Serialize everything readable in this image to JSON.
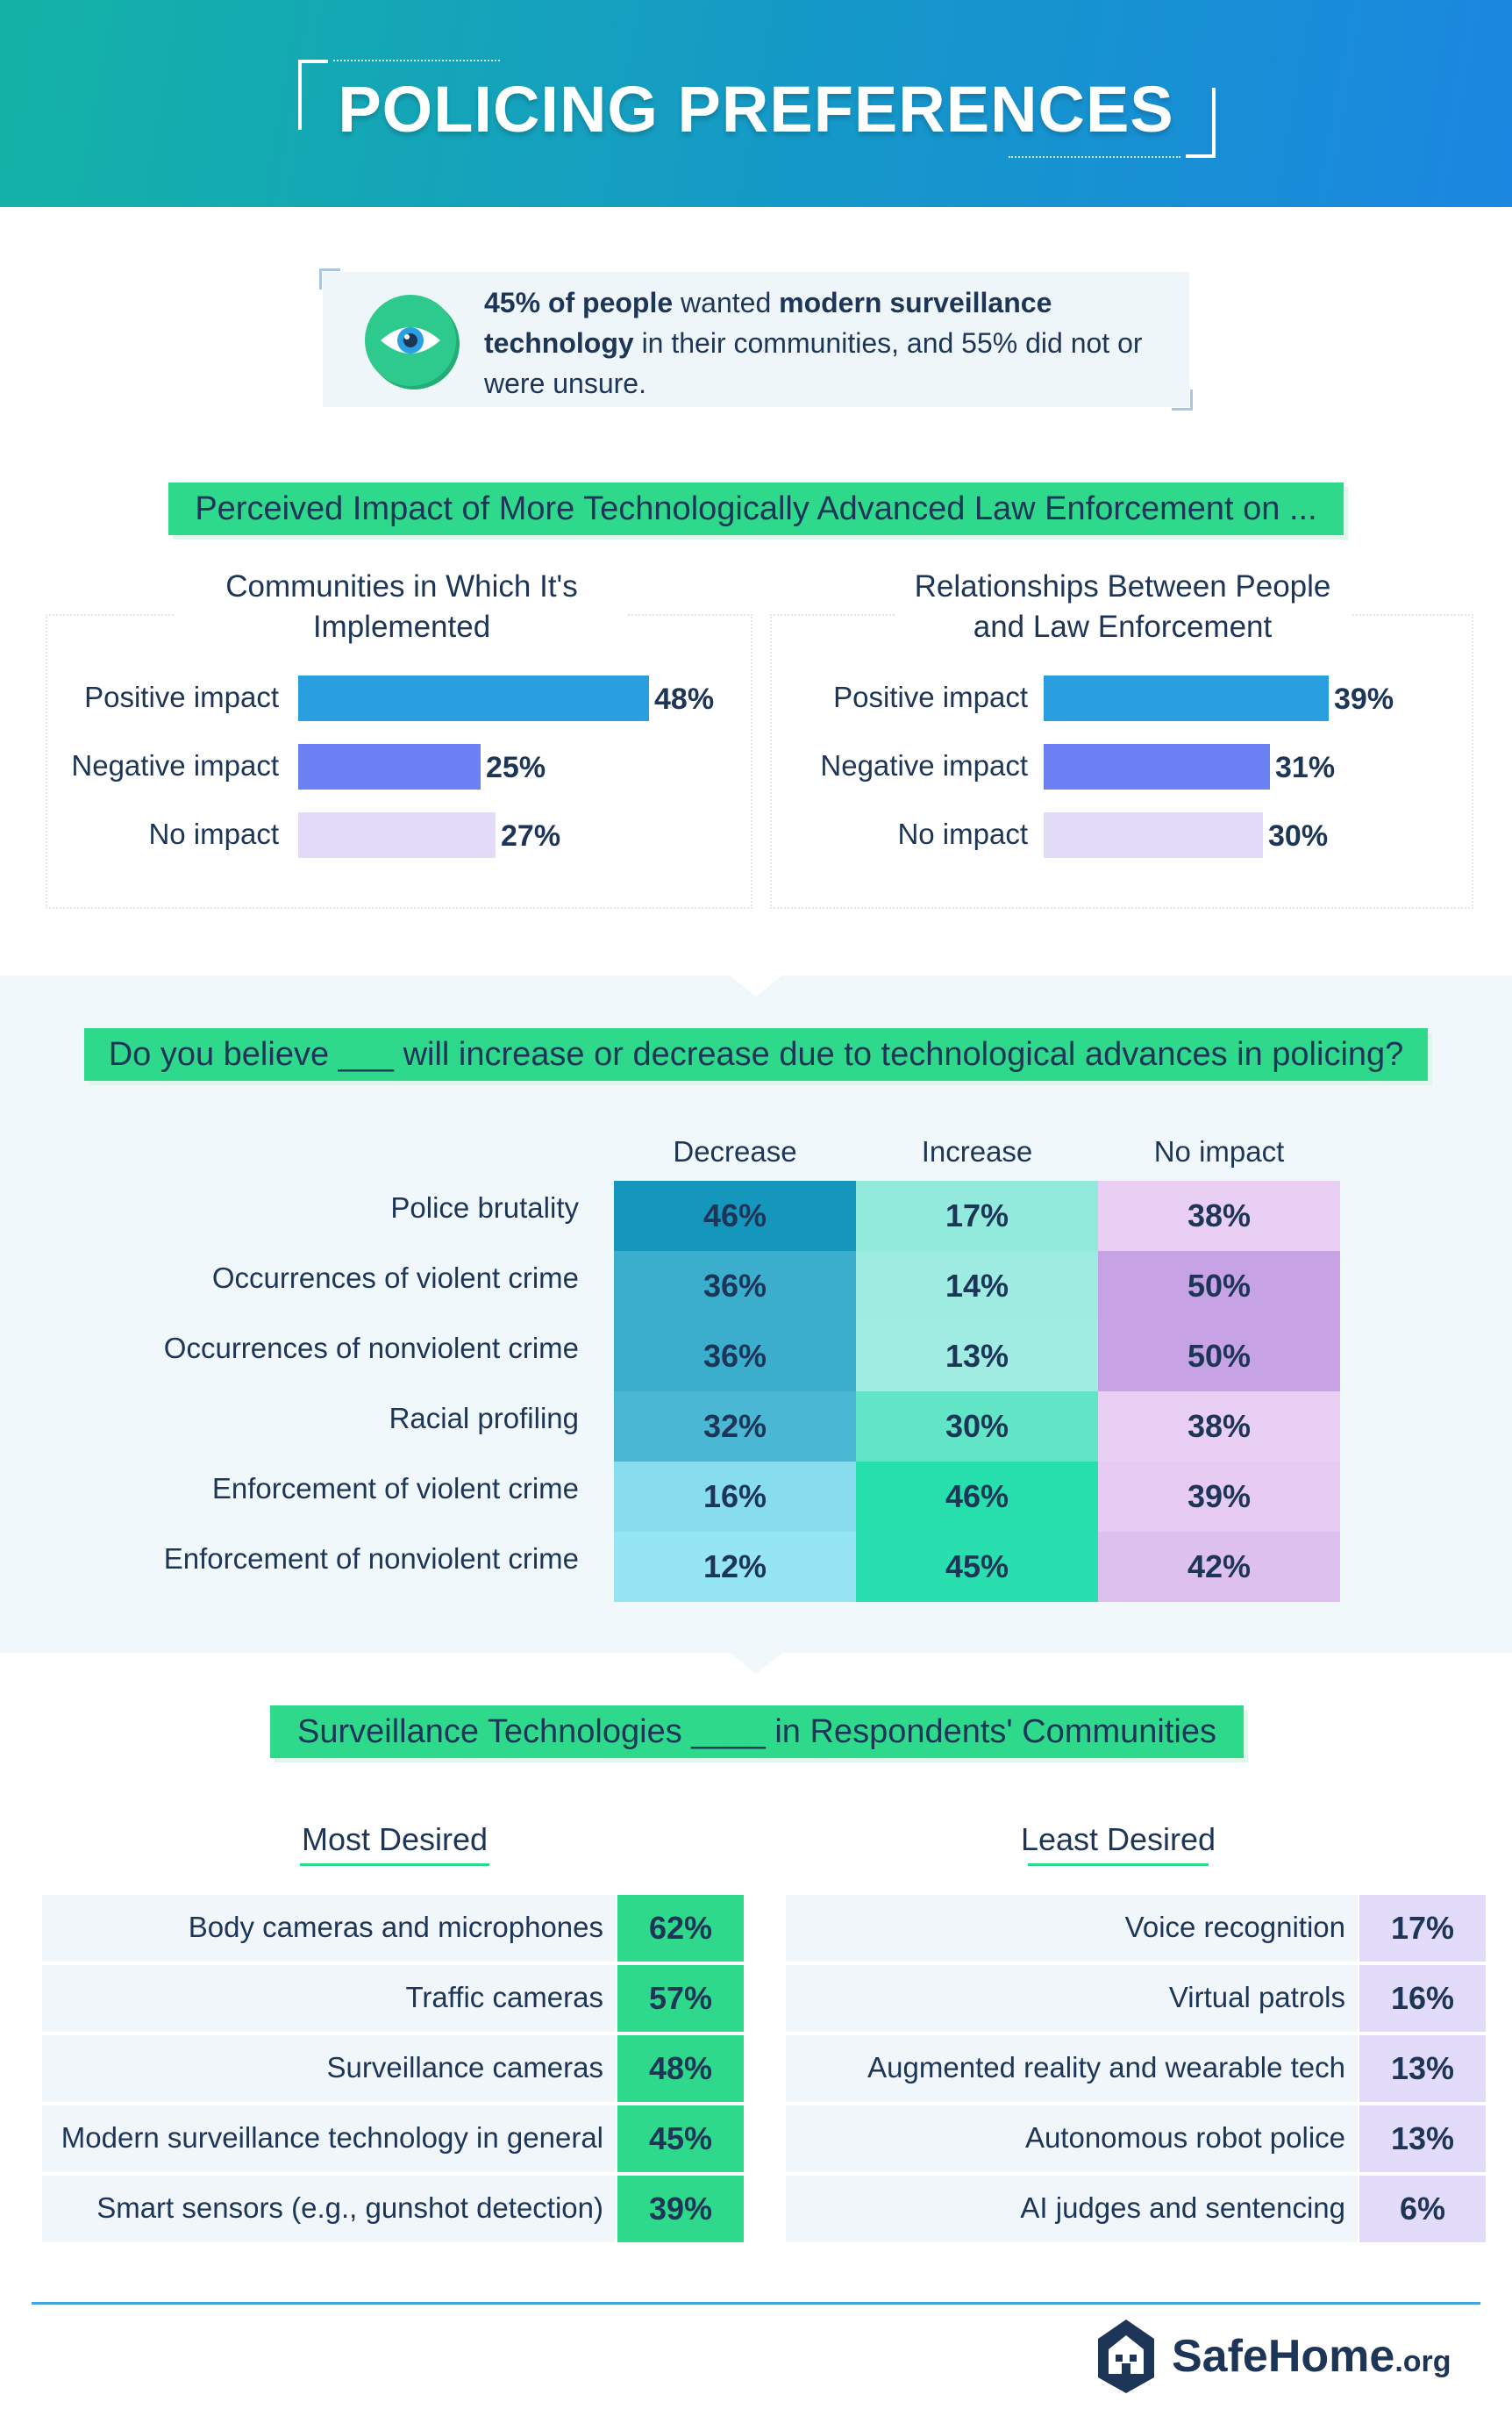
{
  "page": {
    "title": "POLICING PREFERENCES"
  },
  "callout": {
    "bold_1": "45% of people",
    "text_1": " wanted ",
    "bold_2": "modern surveillance technology",
    "text_2": " in their communities, and 55% did not or were unsure."
  },
  "colors": {
    "accent_green": "#2fd98c",
    "header_start": "#14b3a6",
    "header_end": "#1b87e0",
    "positive_bar": "#2a9fe0",
    "negative_bar": "#6b80f2",
    "no_impact_bar": "#e2dcf8"
  },
  "chart_data": [
    {
      "type": "bar",
      "title": "Perceived Impact of More Technologically Advanced Law Enforcement on ...",
      "subtitle": "Communities in Which It's Implemented",
      "categories": [
        "Positive impact",
        "Negative impact",
        "No impact"
      ],
      "values": [
        48,
        25,
        27
      ],
      "value_labels": [
        "48%",
        "25%",
        "27%"
      ]
    },
    {
      "type": "bar",
      "title": "Perceived Impact of More Technologically Advanced Law Enforcement on ...",
      "subtitle": "Relationships Between People and Law Enforcement",
      "categories": [
        "Positive impact",
        "Negative impact",
        "No impact"
      ],
      "values": [
        39,
        31,
        30
      ],
      "value_labels": [
        "39%",
        "31%",
        "30%"
      ]
    },
    {
      "type": "heatmap",
      "title": "Do you believe ___ will increase or decrease due to technological advances in policing?",
      "columns": [
        "Decrease",
        "Increase",
        "No impact"
      ],
      "rows": [
        "Police brutality",
        "Occurrences of violent crime",
        "Occurrences of nonviolent crime",
        "Racial profiling",
        "Enforcement of violent crime",
        "Enforcement of nonviolent crime"
      ],
      "values": [
        [
          46,
          17,
          38
        ],
        [
          36,
          14,
          50
        ],
        [
          36,
          13,
          50
        ],
        [
          32,
          30,
          38
        ],
        [
          16,
          46,
          39
        ],
        [
          12,
          45,
          42
        ]
      ],
      "value_labels": [
        [
          "46%",
          "17%",
          "38%"
        ],
        [
          "36%",
          "14%",
          "50%"
        ],
        [
          "36%",
          "13%",
          "50%"
        ],
        [
          "32%",
          "30%",
          "38%"
        ],
        [
          "16%",
          "46%",
          "39%"
        ],
        [
          "12%",
          "45%",
          "42%"
        ]
      ]
    },
    {
      "type": "table",
      "title": "Surveillance Technologies ____ in Respondents' Communities",
      "subtitle": "Most Desired",
      "categories": [
        "Body cameras and microphones",
        "Traffic cameras",
        "Surveillance cameras",
        "Modern surveillance technology in general",
        "Smart sensors (e.g., gunshot detection)"
      ],
      "values": [
        62,
        57,
        48,
        45,
        39
      ],
      "value_labels": [
        "62%",
        "57%",
        "48%",
        "45%",
        "39%"
      ]
    },
    {
      "type": "table",
      "title": "Surveillance Technologies ____ in Respondents' Communities",
      "subtitle": "Least Desired",
      "categories": [
        "Voice recognition",
        "Virtual patrols",
        "Augmented reality and wearable tech",
        "Autonomous robot police",
        "AI judges and sentencing"
      ],
      "values": [
        17,
        16,
        13,
        13,
        6
      ],
      "value_labels": [
        "17%",
        "16%",
        "13%",
        "13%",
        "6%"
      ]
    }
  ],
  "footer": {
    "logo_main": "SafeHome",
    "logo_suffix": ".org"
  }
}
